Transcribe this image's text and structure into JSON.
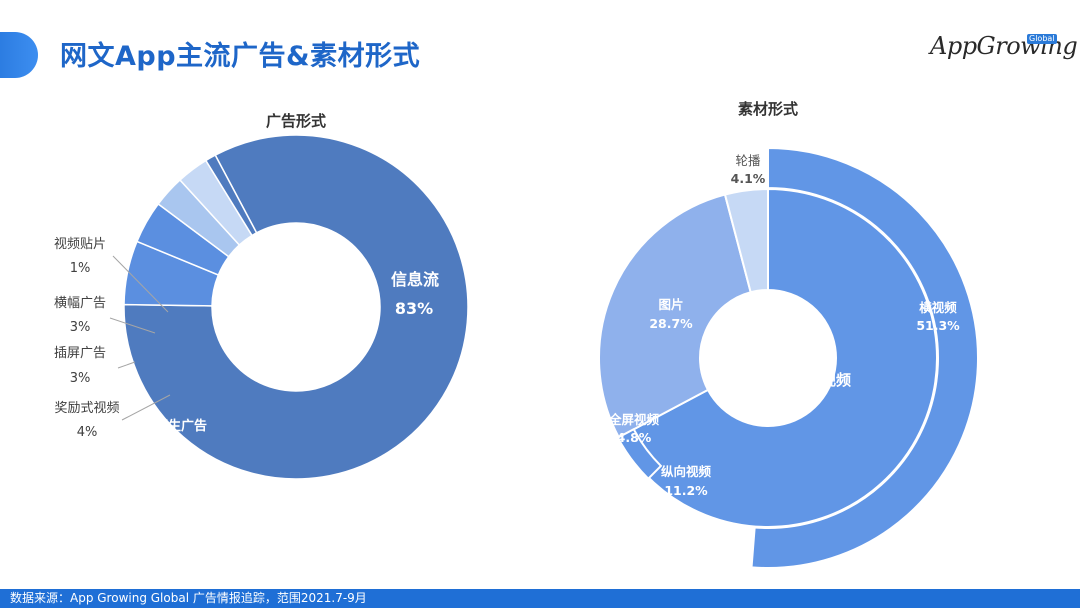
{
  "header": {
    "title": "网文App主流广告&素材形式",
    "logo_text": "AppGrowing",
    "logo_badge": "Global"
  },
  "footer": {
    "source": "数据来源：App Growing Global 广告情报追踪，范围2021.7-9月"
  },
  "colors": {
    "accent": "#1f6fd6",
    "title": "#1e66c8",
    "left_main": "#4f7bbf",
    "left_light": "#c6d9f5",
    "left_mid": "#a9c6ef",
    "left_blue": "#5b8fe0",
    "right_main": "#6196e6",
    "right_image": "#8fb1ec",
    "right_carousel": "#c6d9f5"
  },
  "chart_data": [
    {
      "type": "pie",
      "title": "广告形式",
      "slices": [
        {
          "label": "信息流",
          "value": 83,
          "value_label": "83%"
        },
        {
          "label": "原生广告",
          "value": 6,
          "value_label": "6%"
        },
        {
          "label": "奖励式视频",
          "value": 4,
          "value_label": "4%"
        },
        {
          "label": "插屏广告",
          "value": 3,
          "value_label": "3%"
        },
        {
          "label": "横幅广告",
          "value": 3,
          "value_label": "3%"
        },
        {
          "label": "视频贴片",
          "value": 1,
          "value_label": "1%"
        }
      ]
    },
    {
      "type": "pie",
      "title": "素材形式",
      "inner": [
        {
          "label": "视频",
          "value": 67.3
        },
        {
          "label": "图片",
          "value": 28.7
        },
        {
          "label": "轮播",
          "value": 4.1
        }
      ],
      "outer": [
        {
          "label": "横视频",
          "value": 51.3,
          "value_label": "51.3%"
        },
        {
          "label": "纵向视频",
          "value": 11.2,
          "value_label": "11.2%"
        },
        {
          "label": "全屏视频",
          "value": 4.8,
          "value_label": "4.8%"
        },
        {
          "label": "图片",
          "value": 28.7,
          "value_label": "28.7%"
        },
        {
          "label": "轮播",
          "value": 4.1,
          "value_label": "4.1%"
        }
      ]
    }
  ]
}
